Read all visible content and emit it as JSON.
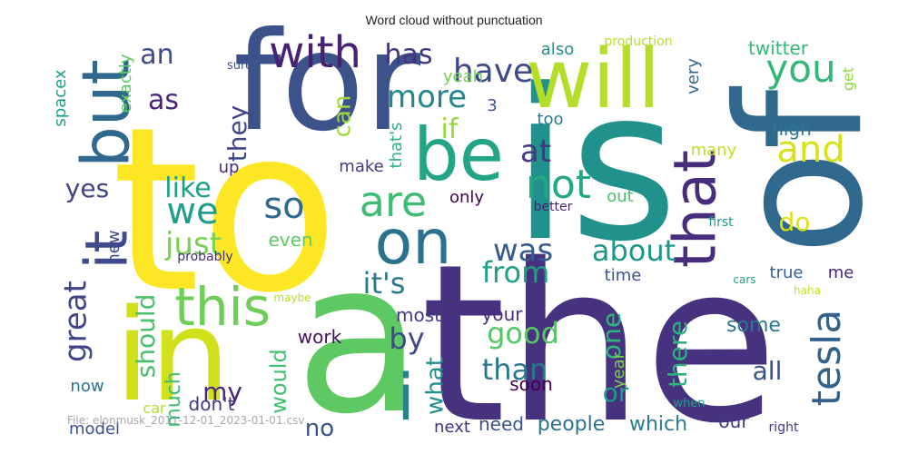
{
  "chart_data": {
    "type": "wordcloud",
    "title": "Word cloud without punctuation",
    "caption": "File: elonmusk_2011-12-01_2023-01-01.csv",
    "colormap": "viridis",
    "words": [
      {
        "text": "to",
        "color": "#fde725"
      },
      {
        "text": "the",
        "color": "#46327e"
      },
      {
        "text": "is",
        "color": "#21918c"
      },
      {
        "text": "for",
        "color": "#3b528b"
      },
      {
        "text": "of",
        "color": "#31688e"
      },
      {
        "text": "a",
        "color": "#5ec962"
      },
      {
        "text": "in",
        "color": "#d0e11c"
      },
      {
        "text": "will",
        "color": "#b5de2b"
      },
      {
        "text": "be",
        "color": "#21a585"
      },
      {
        "text": "on",
        "color": "#2c728e"
      },
      {
        "text": "but",
        "color": "#31688e"
      },
      {
        "text": "that",
        "color": "#472d7b"
      },
      {
        "text": "it",
        "color": "#3e4a89"
      },
      {
        "text": "this",
        "color": "#6ece58"
      },
      {
        "text": "with",
        "color": "#482173"
      },
      {
        "text": "you",
        "color": "#35b779"
      },
      {
        "text": "i",
        "color": "#26828e"
      },
      {
        "text": "are",
        "color": "#3dbc74"
      },
      {
        "text": "so",
        "color": "#31688e"
      },
      {
        "text": "we",
        "color": "#1f9e89"
      },
      {
        "text": "not",
        "color": "#22a884"
      },
      {
        "text": "and",
        "color": "#d8e219"
      },
      {
        "text": "tesla",
        "color": "#33638d"
      },
      {
        "text": "have",
        "color": "#3e4989"
      },
      {
        "text": "at",
        "color": "#453781"
      },
      {
        "text": "great",
        "color": "#404688"
      },
      {
        "text": "just",
        "color": "#7ad151"
      },
      {
        "text": "more",
        "color": "#25858e"
      },
      {
        "text": "was",
        "color": "#365c8d"
      },
      {
        "text": "it's",
        "color": "#2a788e"
      },
      {
        "text": "has",
        "color": "#46327e"
      },
      {
        "text": "like",
        "color": "#1fa188"
      },
      {
        "text": "about",
        "color": "#1f968b"
      },
      {
        "text": "good",
        "color": "#56c667"
      },
      {
        "text": "from",
        "color": "#1fa088"
      },
      {
        "text": "by",
        "color": "#3e4a89"
      },
      {
        "text": "an",
        "color": "#3e4c8a"
      },
      {
        "text": "as",
        "color": "#482576"
      },
      {
        "text": "they",
        "color": "#3f4788"
      },
      {
        "text": "if",
        "color": "#97d83f"
      },
      {
        "text": "can",
        "color": "#9fda3a"
      },
      {
        "text": "should",
        "color": "#4ac16d"
      },
      {
        "text": "there",
        "color": "#2db27d"
      },
      {
        "text": "one",
        "color": "#31b57b"
      },
      {
        "text": "than",
        "color": "#29798e"
      },
      {
        "text": "yes",
        "color": "#414487"
      },
      {
        "text": "do",
        "color": "#dde318"
      },
      {
        "text": "all",
        "color": "#3b518b"
      },
      {
        "text": "my",
        "color": "#482878"
      },
      {
        "text": "what",
        "color": "#21908d"
      },
      {
        "text": "or",
        "color": "#1e9b8a"
      },
      {
        "text": "much",
        "color": "#3dbc74"
      },
      {
        "text": "would",
        "color": "#43bf71"
      },
      {
        "text": "no",
        "color": "#3b528b"
      },
      {
        "text": "some",
        "color": "#2a778e"
      },
      {
        "text": "people",
        "color": "#2c738e"
      },
      {
        "text": "which",
        "color": "#287d8e"
      },
      {
        "text": "need",
        "color": "#3b528b"
      },
      {
        "text": "your",
        "color": "#472f7d"
      },
      {
        "text": "most",
        "color": "#443983"
      },
      {
        "text": "even",
        "color": "#5ec962"
      },
      {
        "text": "make",
        "color": "#443a83"
      },
      {
        "text": "also",
        "color": "#21918c"
      },
      {
        "text": "twitter",
        "color": "#35b779"
      },
      {
        "text": "yeah",
        "color": "#73d056"
      },
      {
        "text": "exactly",
        "color": "#5ec962"
      },
      {
        "text": "spacex",
        "color": "#1fa188"
      },
      {
        "text": "very",
        "color": "#31688e"
      },
      {
        "text": "get",
        "color": "#8fd744"
      },
      {
        "text": "high",
        "color": "#2a788e"
      },
      {
        "text": "many",
        "color": "#c2df23"
      },
      {
        "text": "out",
        "color": "#4ac16d"
      },
      {
        "text": "only",
        "color": "#440154"
      },
      {
        "text": "that's",
        "color": "#2db27d"
      },
      {
        "text": "too",
        "color": "#287d8e"
      },
      {
        "text": "3",
        "color": "#3b528b"
      },
      {
        "text": "up",
        "color": "#472c7a"
      },
      {
        "text": "new",
        "color": "#3e4a89"
      },
      {
        "text": "time",
        "color": "#3b528b"
      },
      {
        "text": "true",
        "color": "#355f8d"
      },
      {
        "text": "me",
        "color": "#482878"
      },
      {
        "text": "first",
        "color": "#1f9a8a"
      },
      {
        "text": "cars",
        "color": "#1fa088"
      },
      {
        "text": "haha",
        "color": "#c8e020"
      },
      {
        "text": "better",
        "color": "#481f70"
      },
      {
        "text": "probably",
        "color": "#46307e"
      },
      {
        "text": "maybe",
        "color": "#b8de29"
      },
      {
        "text": "production",
        "color": "#b5de2b"
      },
      {
        "text": "sure",
        "color": "#3b528b"
      },
      {
        "text": "work",
        "color": "#471063"
      },
      {
        "text": "now",
        "color": "#2c728e"
      },
      {
        "text": "year",
        "color": "#7ad151"
      },
      {
        "text": "soon",
        "color": "#440154"
      },
      {
        "text": "when",
        "color": "#1fa188"
      },
      {
        "text": "next",
        "color": "#46337f"
      },
      {
        "text": "our",
        "color": "#453781"
      },
      {
        "text": "right",
        "color": "#443983"
      },
      {
        "text": "model",
        "color": "#3b528b"
      },
      {
        "text": "car",
        "color": "#b5de2b"
      },
      {
        "text": "don't",
        "color": "#453882"
      }
    ]
  }
}
